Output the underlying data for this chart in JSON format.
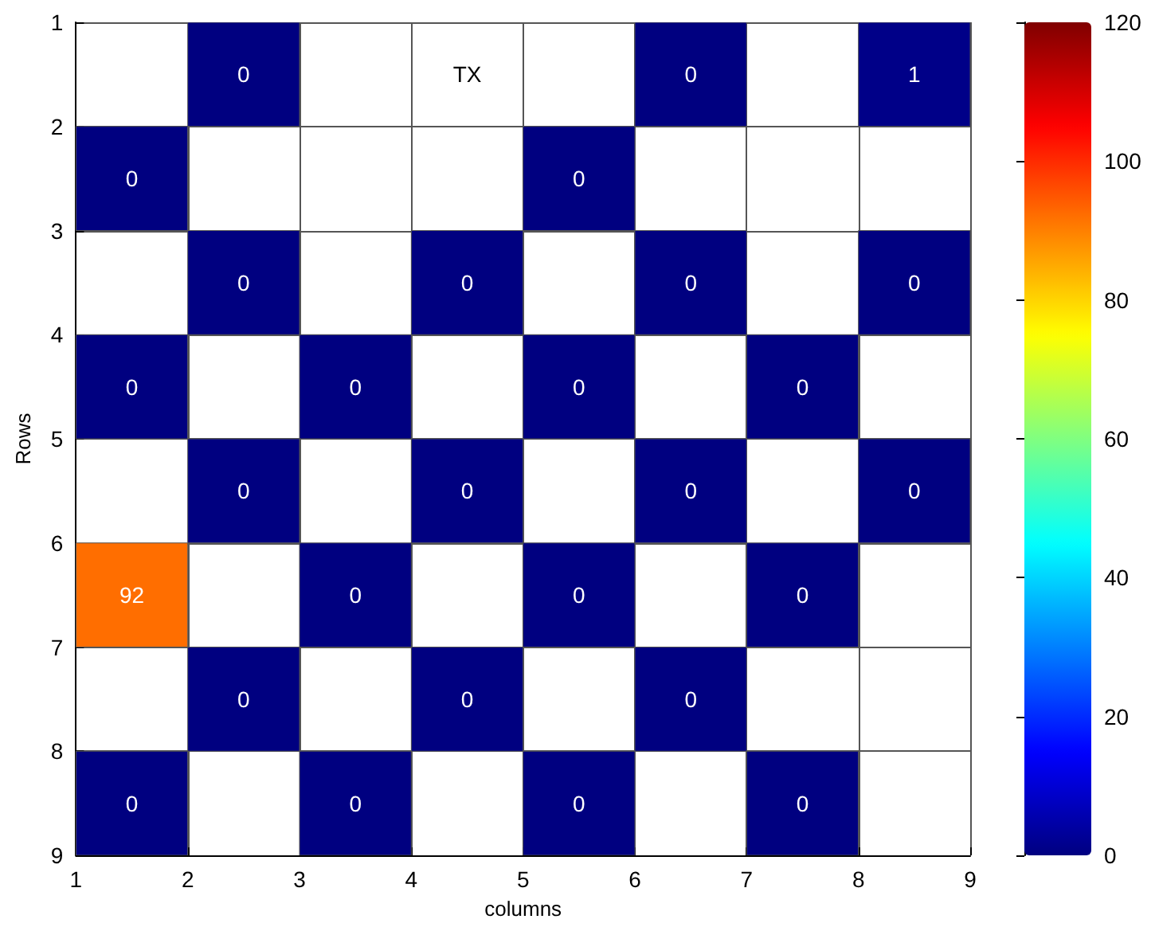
{
  "chart_data": {
    "type": "heatmap",
    "xlabel": "columns",
    "ylabel": "Rows",
    "xlim": [
      1,
      9
    ],
    "xticks": [
      1,
      2,
      3,
      4,
      5,
      6,
      7,
      8,
      9
    ],
    "ylim": [
      9,
      1
    ],
    "yticks": [
      1,
      2,
      3,
      4,
      5,
      6,
      7,
      8,
      9
    ],
    "cells": [
      [
        null,
        0,
        null,
        null,
        null,
        0,
        null,
        1
      ],
      [
        0,
        null,
        null,
        null,
        0,
        null,
        null,
        null
      ],
      [
        null,
        0,
        null,
        0,
        null,
        0,
        null,
        0
      ],
      [
        0,
        null,
        0,
        null,
        0,
        null,
        0,
        null
      ],
      [
        null,
        0,
        null,
        0,
        null,
        0,
        null,
        0
      ],
      [
        92,
        null,
        0,
        null,
        0,
        null,
        0,
        null
      ],
      [
        null,
        0,
        null,
        0,
        null,
        0,
        null,
        null
      ],
      [
        0,
        null,
        0,
        null,
        0,
        null,
        0,
        null
      ]
    ],
    "cell_labels": [
      [
        null,
        "0",
        null,
        "TX",
        null,
        "0",
        null,
        "1"
      ],
      [
        "0",
        null,
        null,
        null,
        "0",
        null,
        null,
        null
      ],
      [
        null,
        "0",
        null,
        "0",
        null,
        "0",
        null,
        "0"
      ],
      [
        "0",
        null,
        "0",
        null,
        "0",
        null,
        "0",
        null
      ],
      [
        null,
        "0",
        null,
        "0",
        null,
        "0",
        null,
        "0"
      ],
      [
        "92",
        null,
        "0",
        null,
        "0",
        null,
        "0",
        null
      ],
      [
        null,
        "0",
        null,
        "0",
        null,
        "0",
        null,
        null
      ],
      [
        "0",
        null,
        "0",
        null,
        "0",
        null,
        "0",
        null
      ]
    ],
    "clim": [
      0,
      120
    ],
    "cticks": [
      0,
      20,
      40,
      60,
      80,
      100,
      120
    ],
    "grid": true
  }
}
